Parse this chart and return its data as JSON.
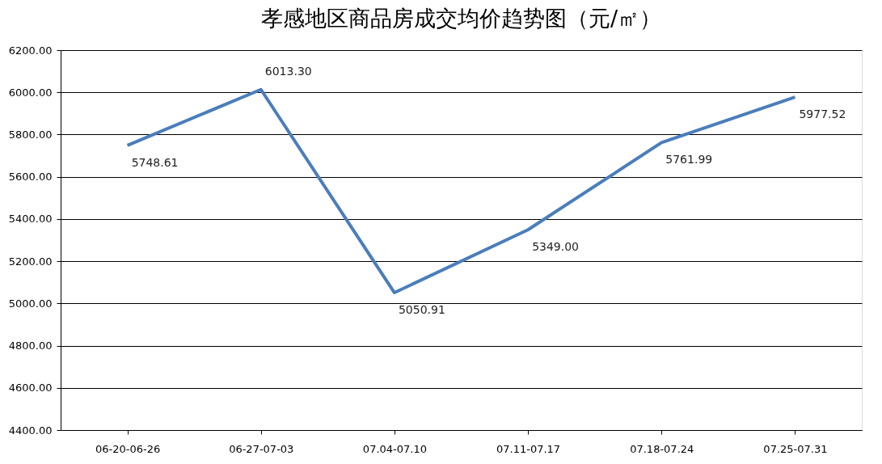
{
  "chart_data": {
    "type": "line",
    "title": "孝感地区商品房成交均价趋势图（元/㎡）",
    "categories": [
      "06-20-06-26",
      "06-27-07-03",
      "07.04-07.10",
      "07.11-07.17",
      "07.18-07.24",
      "07.25-07.31"
    ],
    "series": [
      {
        "color": "#4a7ebb",
        "values": [
          5748.61,
          6013.3,
          5050.91,
          5349.0,
          5761.99,
          5977.52
        ],
        "value_labels": [
          "5748.61",
          "6013.30",
          "5050.91",
          "5349.00",
          "5761.99",
          "5977.52"
        ]
      }
    ],
    "ylim": [
      4400,
      6200
    ],
    "yticks": [
      {
        "value": 4400,
        "label": "4400.00"
      },
      {
        "value": 4600,
        "label": "4600.00"
      },
      {
        "value": 4800,
        "label": "4800.00"
      },
      {
        "value": 5000,
        "label": "5000.00"
      },
      {
        "value": 5200,
        "label": "5200.00"
      },
      {
        "value": 5400,
        "label": "5400.00"
      },
      {
        "value": 5600,
        "label": "5600.00"
      },
      {
        "value": 5800,
        "label": "5800.00"
      },
      {
        "value": 6000,
        "label": "6000.00"
      },
      {
        "value": 6200,
        "label": "6200.00"
      }
    ],
    "grid": "y",
    "marker": "none",
    "line_style": "solid"
  }
}
